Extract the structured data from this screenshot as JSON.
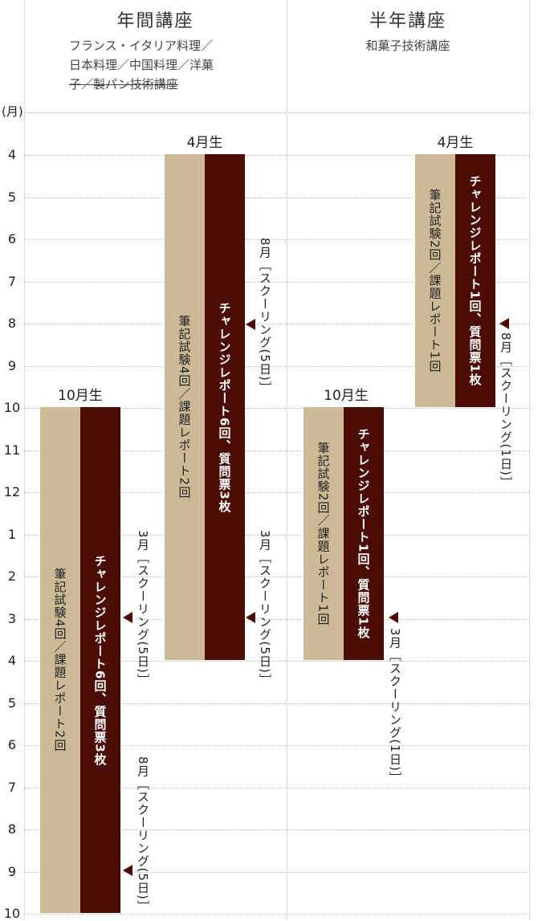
{
  "columns": [
    {
      "title": "年間講座",
      "subtitle_lines": [
        "フランス・イタリア料理／",
        "日本料理／中国料理／洋菓",
        "子／製パン技術講座"
      ]
    },
    {
      "title": "半年講座",
      "subtitle_lines": [
        "和菓子技術講座"
      ]
    }
  ],
  "axis": {
    "unit": "(月)",
    "months": [
      "4",
      "5",
      "6",
      "7",
      "8",
      "9",
      "10",
      "11",
      "12",
      "1",
      "2",
      "3",
      "4",
      "5",
      "6",
      "7",
      "8",
      "9",
      "10"
    ]
  },
  "cohorts": [
    {
      "label": "10月生",
      "light": "筆記試験4回／課題レポート2回",
      "dark": "チャレンジレポート6回、質問票3枚",
      "schoolings": [
        "3月［スクーリング(5日)］",
        "8月［スクーリング(5日)］"
      ]
    },
    {
      "label": "4月生",
      "light": "筆記試験4回／課題レポート2回",
      "dark": "チャレンジレポート6回、質問票3枚",
      "schoolings": [
        "8月［スクーリング(5日)］",
        "3月［スクーリング(5日)］"
      ]
    },
    {
      "label": "10月生",
      "light": "筆記試験2回／課題レポート1回",
      "dark": "チャレンジレポート1回、質問票1枚",
      "schoolings": [
        "3月［スクーリング(1日)］"
      ]
    },
    {
      "label": "4月生",
      "light": "筆記試験2回／課題レポート1回",
      "dark": "チャレンジレポート1回、質問票1枚",
      "schoolings": [
        "8月［スクーリング(1日)］"
      ]
    }
  ],
  "colors": {
    "light_bar": "#ccb996",
    "dark_bar": "#4a0c04",
    "grid": "#bbbbbb"
  }
}
